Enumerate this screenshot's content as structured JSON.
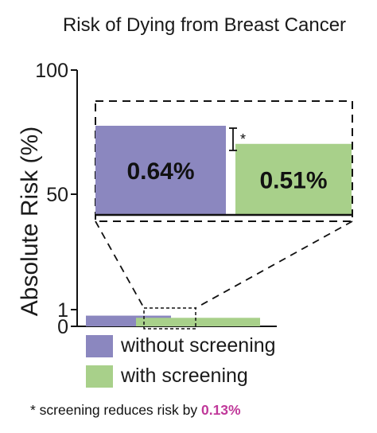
{
  "chart_data": {
    "type": "bar",
    "title": "Risk of Dying from Breast Cancer",
    "ylabel": "Absolute Risk (%)",
    "xlabel": "",
    "ylim": [
      0,
      100
    ],
    "yticks": [
      "100",
      "50",
      "1",
      "0"
    ],
    "categories": [
      "without screening",
      "with screening"
    ],
    "values": [
      0.64,
      0.51
    ],
    "data_labels": [
      "0.64%",
      "0.51%"
    ],
    "inset": {
      "description_marker": "*",
      "values": [
        0.64,
        0.51
      ],
      "labels": [
        "0.64%",
        "0.51%"
      ]
    },
    "legend": [
      {
        "label": "without screening",
        "color": "#8b87bf"
      },
      {
        "label": "with screening",
        "color": "#a8d08a"
      }
    ],
    "legend_placement": "bottom",
    "grid": false
  },
  "colors": {
    "without": "#8b87bf",
    "with": "#a8d08a",
    "accent": "#c0399a"
  },
  "footnote": {
    "prefix": "* screening reduces risk by ",
    "value": "0.13%"
  },
  "annotation_marker": "*"
}
